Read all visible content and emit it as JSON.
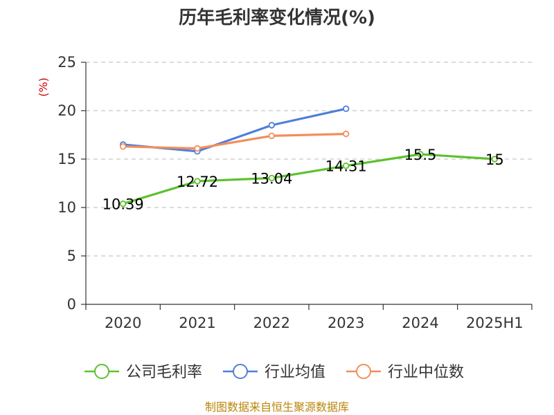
{
  "chart_data": {
    "type": "line",
    "title": "历年毛利率变化情况(%)",
    "unit_label": "(%)",
    "categories": [
      "2020",
      "2021",
      "2022",
      "2023",
      "2024",
      "2025H1"
    ],
    "y_ticks": [
      "0",
      "5",
      "10",
      "15",
      "20",
      "25"
    ],
    "ylim": [
      0,
      25
    ],
    "grid": true,
    "legend_position": "bottom",
    "series": [
      {
        "name": "公司毛利率",
        "color": "#5cc12d",
        "values": [
          10.39,
          12.72,
          13.04,
          14.31,
          15.5,
          15
        ],
        "labels": [
          "10.39",
          "12.72",
          "13.04",
          "14.31",
          "15.5",
          "15"
        ]
      },
      {
        "name": "行业均值",
        "color": "#4e7fd9",
        "values": [
          16.5,
          15.8,
          18.5,
          20.2,
          null,
          null
        ]
      },
      {
        "name": "行业中位数",
        "color": "#f28e5b",
        "values": [
          16.3,
          16.1,
          17.4,
          17.6,
          null,
          null
        ]
      }
    ]
  },
  "source_text": "制图数据来自恒生聚源数据库"
}
